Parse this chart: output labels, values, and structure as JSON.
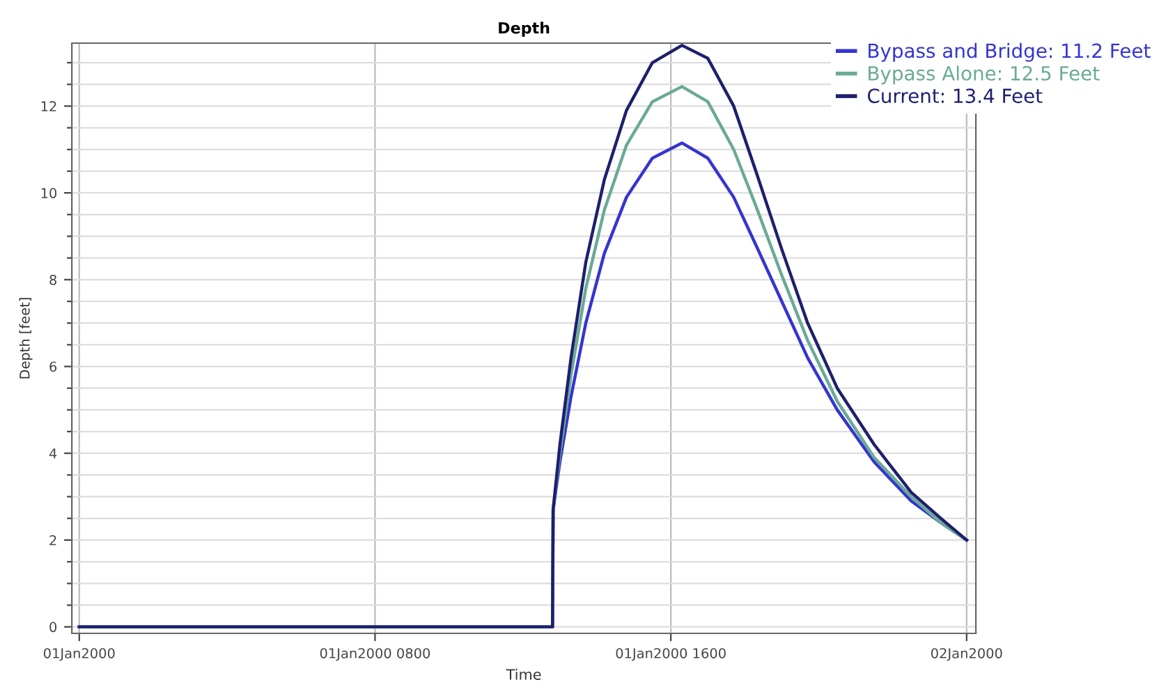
{
  "chart_data": {
    "type": "line",
    "title": "Depth",
    "xlabel": "Time",
    "ylabel": "Depth [feet]",
    "xlim": [
      "1999-12-31T23:48",
      "2000-01-02T00:15"
    ],
    "xticks": [
      {
        "value": "2000-01-01T00:00",
        "label": "01Jan2000"
      },
      {
        "value": "2000-01-01T08:00",
        "label": "01Jan2000 0800"
      },
      {
        "value": "2000-01-01T16:00",
        "label": "01Jan2000 1600"
      },
      {
        "value": "2000-01-02T00:00",
        "label": "02Jan2000"
      }
    ],
    "ylim": [
      -0.15,
      13.45
    ],
    "yticks": [
      0,
      {
        "value": 0.5,
        "label": null
      },
      {
        "value": 1,
        "label": null
      },
      {
        "value": 1.5,
        "label": null
      },
      2,
      {
        "value": 2.5,
        "label": null
      },
      {
        "value": 3,
        "label": null
      },
      {
        "value": 3.5,
        "label": null
      },
      4,
      {
        "value": 4.5,
        "label": null
      },
      {
        "value": 5,
        "label": null
      },
      {
        "value": 5.5,
        "label": null
      },
      6,
      {
        "value": 6.5,
        "label": null
      },
      {
        "value": 7,
        "label": null
      },
      {
        "value": 7.5,
        "label": null
      },
      8,
      {
        "value": 8.5,
        "label": null
      },
      {
        "value": 9,
        "label": null
      },
      {
        "value": 9.5,
        "label": null
      },
      10,
      {
        "value": 10.5,
        "label": null
      },
      {
        "value": 11,
        "label": null
      },
      {
        "value": 11.5,
        "label": null
      },
      12,
      {
        "value": 12.5,
        "label": null
      },
      {
        "value": 13,
        "label": null
      }
    ],
    "grid": true,
    "legend": "top right",
    "marker": "none",
    "line_style": "solid",
    "x": [
      "2000-01-01T00:00",
      "2000-01-01T12:48",
      "2000-01-01T12:49",
      "2000-01-01T13:00",
      "2000-01-01T13:18",
      "2000-01-01T13:42",
      "2000-01-01T14:12",
      "2000-01-01T14:48",
      "2000-01-01T15:30",
      "2000-01-01T16:18",
      "2000-01-01T17:00",
      "2000-01-01T17:42",
      "2000-01-01T18:18",
      "2000-01-01T19:00",
      "2000-01-01T19:42",
      "2000-01-01T20:30",
      "2000-01-01T21:30",
      "2000-01-01T22:30",
      "2000-01-01T23:18",
      "2000-01-02T00:00"
    ],
    "series": [
      {
        "name": "Bypass and Bridge: 11.2 Feet",
        "color": "#3535d0",
        "values": [
          0,
          0,
          2.7,
          3.8,
          5.3,
          7.0,
          8.6,
          9.9,
          10.8,
          11.15,
          10.8,
          9.9,
          8.8,
          7.5,
          6.2,
          5.0,
          3.8,
          2.9,
          2.4,
          2.0
        ]
      },
      {
        "name": "Bypass Alone: 12.5 Feet",
        "color": "#6aaa96",
        "values": [
          0,
          0,
          2.7,
          4.0,
          5.8,
          7.8,
          9.6,
          11.1,
          12.1,
          12.45,
          12.1,
          11.0,
          9.7,
          8.1,
          6.6,
          5.2,
          3.9,
          3.0,
          2.4,
          2.0
        ]
      },
      {
        "name": "Current: 13.4 Feet",
        "color": "#1f1f6e",
        "values": [
          0,
          0,
          2.7,
          4.2,
          6.2,
          8.4,
          10.3,
          11.9,
          13.0,
          13.4,
          13.1,
          12.0,
          10.5,
          8.7,
          7.0,
          5.5,
          4.2,
          3.1,
          2.5,
          2.0
        ]
      }
    ]
  }
}
